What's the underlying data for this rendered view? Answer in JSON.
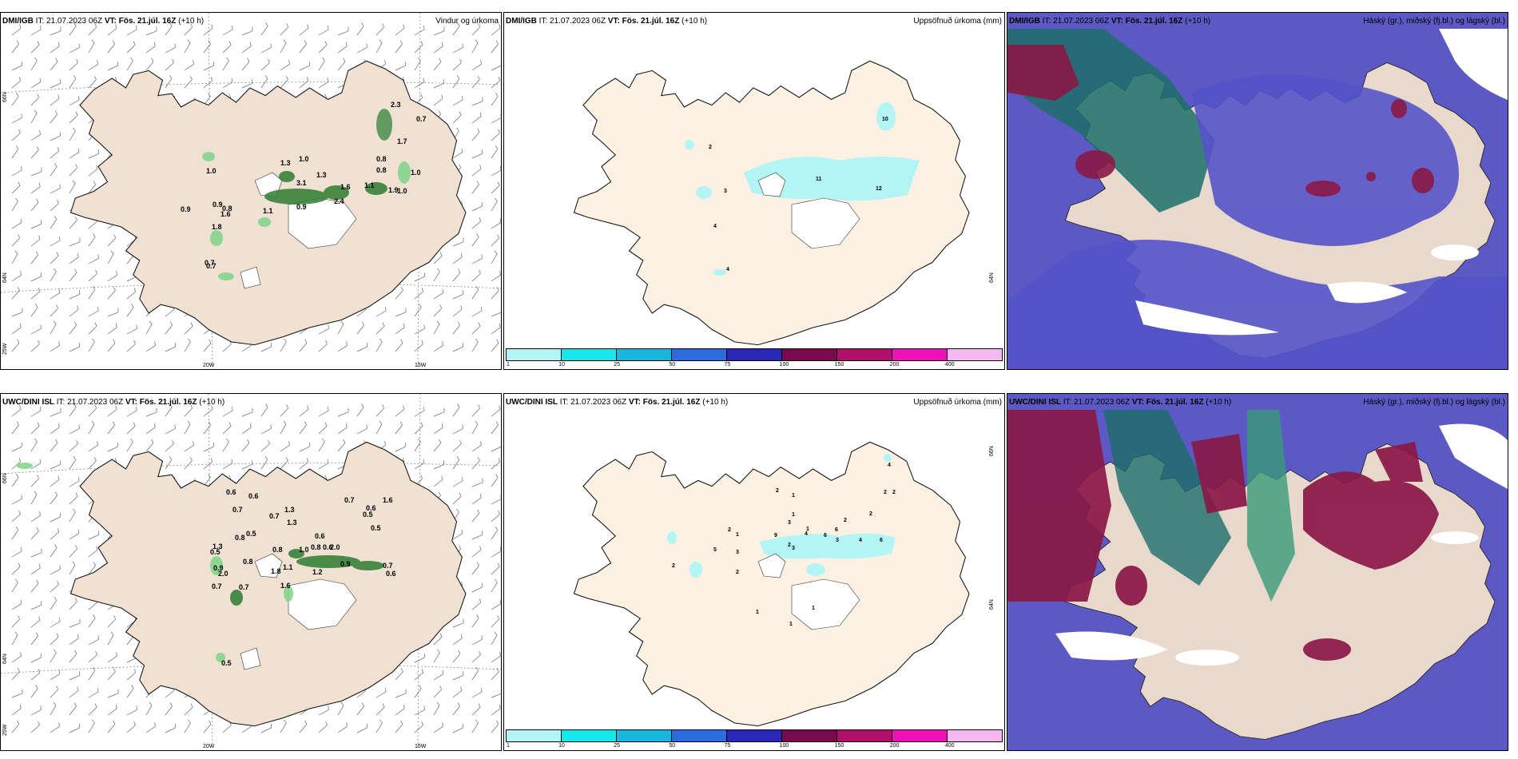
{
  "header_common": {
    "it_label": "IT:",
    "it_value": "21.07.2023 06Z",
    "vt_label": "VT:",
    "vt_value": "Fös. 21.júl. 16Z",
    "lead": "(+10 h)"
  },
  "row1": {
    "model": "DMI/IGB",
    "wind": {
      "title": "Vindur og úrkoma",
      "lon_labels": [
        "20W",
        "15W"
      ],
      "lat_labels": [
        "66N",
        "64N",
        "25W"
      ],
      "labels": [
        "1.0",
        "1.3",
        "3.1",
        "1.3",
        "0.8",
        "1.0",
        "1.9",
        "1.6",
        "1.1",
        "2.3",
        "0.7",
        "0.8",
        "1.0",
        "0.9",
        "0.9",
        "1.7",
        "0.7",
        "0.8",
        "1.8",
        "0.7",
        "2.4",
        "1.1",
        "1.6",
        "0.9",
        "1.0"
      ]
    },
    "precip": {
      "title": "Uppsöfnuð úrkoma (mm)",
      "lat_label": "64N",
      "labels": [
        "2",
        "10",
        "3",
        "11",
        "12",
        "4",
        "4"
      ],
      "colorbar": {
        "ticks": [
          "1",
          "10",
          "25",
          "50",
          "75",
          "100",
          "150",
          "200",
          "400"
        ],
        "colors": [
          "#b3f5f5",
          "#16e8ec",
          "#19b6dd",
          "#2d6be0",
          "#2a27b8",
          "#7a0a4e",
          "#b0106a",
          "#ee10b8",
          "#f5b8f0"
        ]
      }
    },
    "cloud": {
      "title": "Háský (gr.), miðský (fj.bl.) og lágský (bl.)"
    }
  },
  "row2": {
    "model": "UWC/DINI ISL",
    "wind": {
      "title": "",
      "lon_labels": [
        "20W",
        "15W"
      ],
      "lat_labels": [
        "66N",
        "64N",
        "25W"
      ],
      "labels": [
        "0.6",
        "0.6",
        "0.7",
        "1.3",
        "0.5",
        "0.7",
        "0.7",
        "0.6",
        "1.6",
        "0.8",
        "0.6",
        "0.5",
        "1.3",
        "0.6",
        "1.0",
        "0.8",
        "1.3",
        "0.8",
        "0.5",
        "0.8",
        "1.1",
        "1.2",
        "0.7",
        "1.6",
        "0.9",
        "0.5",
        "1.8",
        "0.7",
        "0.9",
        "2.0",
        "2.0",
        "0.5",
        "0.7",
        "0.6"
      ]
    },
    "precip": {
      "title": "Uppsöfnuð úrkoma (mm)",
      "lat_labels": [
        "66N",
        "64N"
      ],
      "labels": [
        "4",
        "2",
        "1",
        "2",
        "2",
        "2",
        "1",
        "3",
        "2",
        "2",
        "1",
        "6",
        "1",
        "9",
        "4",
        "6",
        "3",
        "4",
        "6",
        "5",
        "3",
        "2",
        "2",
        "3",
        "1",
        "1",
        "1",
        "2"
      ],
      "colorbar": {
        "ticks": [
          "1",
          "10",
          "25",
          "50",
          "75",
          "100",
          "150",
          "200",
          "400"
        ],
        "colors": [
          "#b3f5f5",
          "#16e8ec",
          "#19b6dd",
          "#2d6be0",
          "#2a27b8",
          "#7a0a4e",
          "#b0106a",
          "#ee10b8",
          "#f5b8f0"
        ]
      }
    },
    "cloud": {
      "title": "Háský (gr.), miðský (fj.bl.) og lágský (bl.)"
    }
  }
}
